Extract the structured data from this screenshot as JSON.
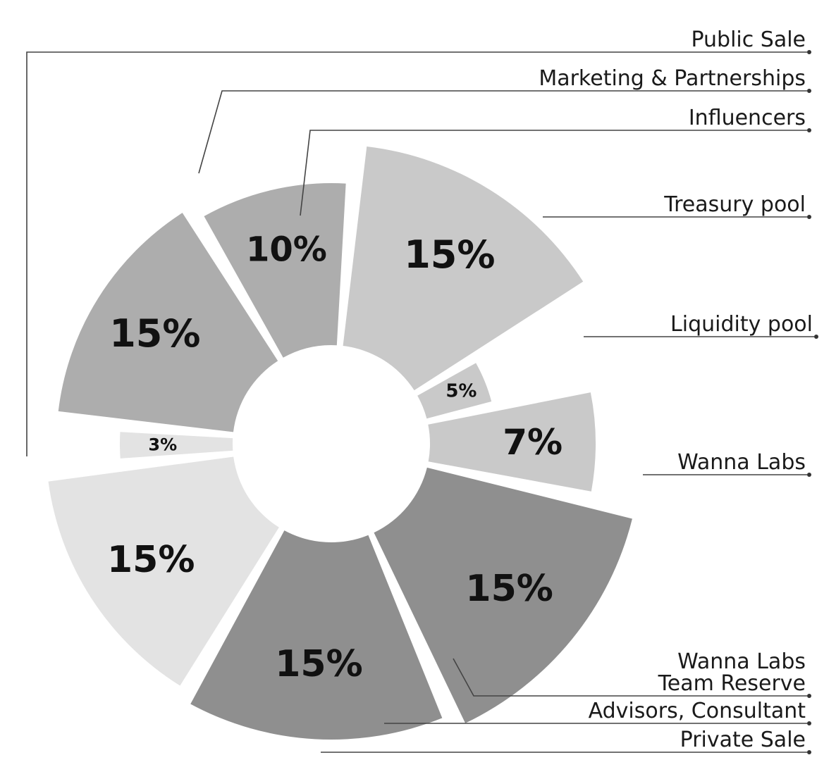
{
  "chart_data": {
    "type": "pie",
    "variant": "exploded-donut",
    "title": "",
    "unit": "%",
    "slices": [
      {
        "label": "Treasury pool",
        "value": 15,
        "display": "15%",
        "color": "#adadad"
      },
      {
        "label": "Liquidity pool",
        "value": 10,
        "display": "10%",
        "color": "#adadad"
      },
      {
        "label": "Wanna Labs",
        "value": 15,
        "display": "15%",
        "color": "#c9c9c9"
      },
      {
        "label": "Wanna Labs Team Reserve",
        "label_lines": [
          "Wanna Labs",
          "Team Reserve"
        ],
        "value": 5,
        "display": "5%",
        "color": "#c9c9c9"
      },
      {
        "label": "Advisors, Consultant",
        "value": 7,
        "display": "7%",
        "color": "#c9c9c9"
      },
      {
        "label": "Private Sale",
        "value": 15,
        "display": "15%",
        "color": "#8f8f8f"
      },
      {
        "label": "Public Sale",
        "value": 15,
        "display": "15%",
        "color": "#8f8f8f"
      },
      {
        "label": "Marketing & Partnerships",
        "value": 15,
        "display": "15%",
        "color": "#e3e3e3"
      },
      {
        "label": "Influencers",
        "value": 3,
        "display": "3%",
        "color": "#e3e3e3"
      }
    ]
  }
}
